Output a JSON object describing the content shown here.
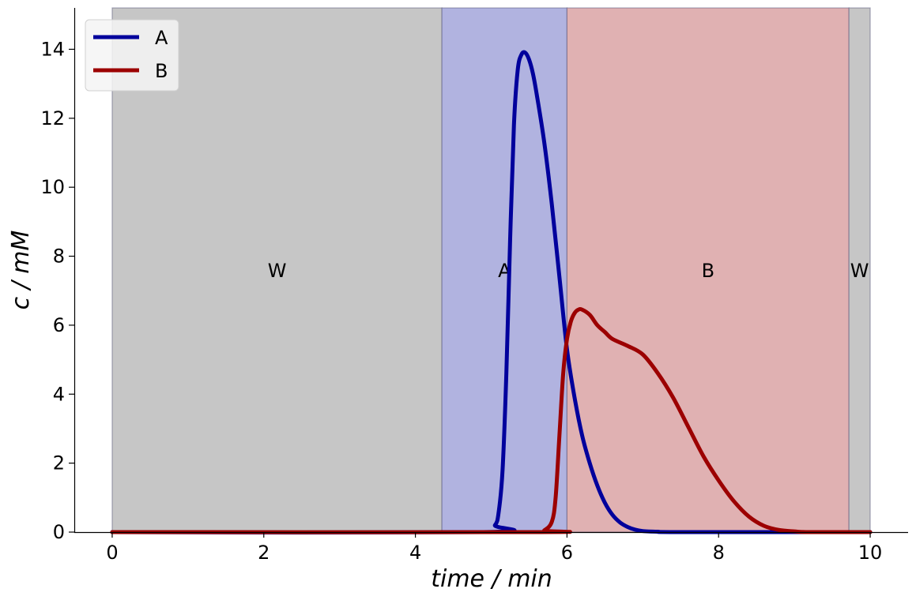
{
  "chart_data": {
    "type": "line",
    "xlabel": "time / min",
    "ylabel": "c / mM",
    "xlim": [
      -0.5,
      10.5
    ],
    "ylim": [
      0,
      15.2
    ],
    "xticks": [
      0,
      2,
      4,
      6,
      8,
      10
    ],
    "yticks": [
      0,
      2,
      4,
      6,
      8,
      10,
      12,
      14
    ],
    "grid": false,
    "legend_position": "top-left",
    "fractions": [
      {
        "label": "W",
        "start": 0,
        "end": 4.35,
        "color": "#c6c6c6"
      },
      {
        "label": "A",
        "start": 4.35,
        "end": 6.0,
        "color": "#b1b3e0"
      },
      {
        "label": "B",
        "start": 6.0,
        "end": 9.72,
        "color": "#e0b1b2"
      },
      {
        "label": "W",
        "start": 9.72,
        "end": 10.0,
        "color": "#c6c6c6"
      }
    ],
    "fraction_label_y": 7.6,
    "series": [
      {
        "name": "A",
        "color": "#00009c",
        "x": [
          0,
          4.9,
          5.05,
          5.1,
          5.15,
          5.2,
          5.25,
          5.3,
          5.35,
          5.4,
          5.45,
          5.5,
          5.55,
          5.6,
          5.7,
          5.8,
          5.9,
          6.0,
          6.1,
          6.2,
          6.3,
          6.4,
          6.5,
          6.6,
          6.7,
          6.8,
          6.9,
          7.0,
          7.2,
          7.5,
          10.0
        ],
        "y": [
          0,
          0,
          0.2,
          0.6,
          1.8,
          4.6,
          8.5,
          11.8,
          13.4,
          13.85,
          13.9,
          13.7,
          13.3,
          12.7,
          11.3,
          9.5,
          7.4,
          5.3,
          3.9,
          2.8,
          2.0,
          1.35,
          0.85,
          0.5,
          0.28,
          0.15,
          0.07,
          0.03,
          0.01,
          0,
          0
        ]
      },
      {
        "name": "B",
        "color": "#9c0000",
        "x": [
          0,
          5.6,
          5.7,
          5.8,
          5.85,
          5.9,
          5.95,
          6.0,
          6.05,
          6.1,
          6.15,
          6.2,
          6.3,
          6.4,
          6.5,
          6.6,
          6.8,
          7.0,
          7.2,
          7.4,
          7.6,
          7.8,
          8.0,
          8.2,
          8.4,
          8.6,
          8.8,
          9.0,
          9.2,
          10.0
        ],
        "y": [
          0,
          0,
          0.05,
          0.3,
          1.0,
          2.8,
          4.6,
          5.6,
          6.1,
          6.35,
          6.45,
          6.45,
          6.3,
          6.0,
          5.8,
          5.6,
          5.4,
          5.15,
          4.6,
          3.9,
          3.05,
          2.2,
          1.5,
          0.9,
          0.45,
          0.18,
          0.06,
          0.02,
          0,
          0
        ]
      }
    ]
  }
}
